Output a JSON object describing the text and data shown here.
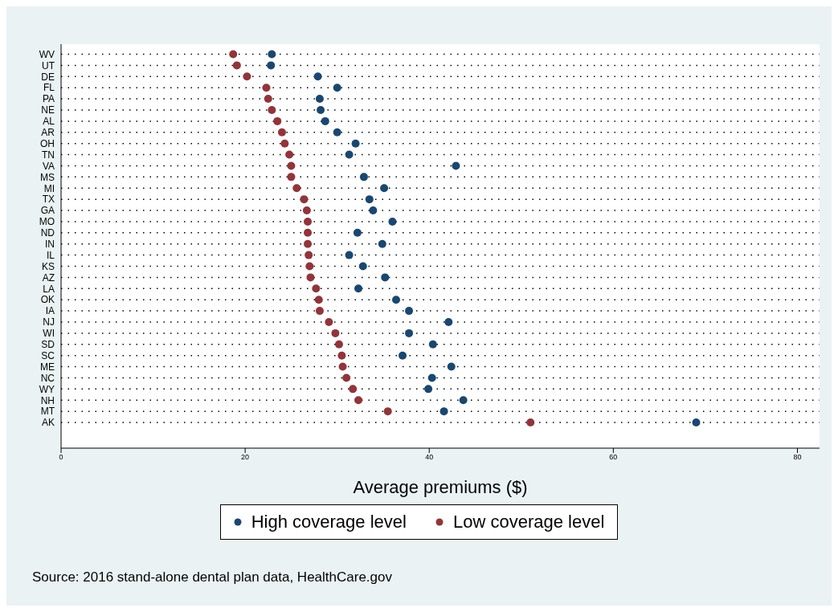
{
  "chart_data": {
    "type": "scatter",
    "orientation": "horizontal",
    "xlabel": "Average premiums ($)",
    "categories": [
      "WV",
      "UT",
      "DE",
      "FL",
      "PA",
      "NE",
      "AL",
      "AR",
      "OH",
      "TN",
      "VA",
      "MS",
      "MI",
      "TX",
      "GA",
      "MO",
      "ND",
      "IN",
      "IL",
      "KS",
      "AZ",
      "LA",
      "OK",
      "IA",
      "NJ",
      "WI",
      "SD",
      "SC",
      "ME",
      "NC",
      "WY",
      "NH",
      "MT",
      "AK"
    ],
    "series": [
      {
        "name": "High coverage level",
        "color": "#1a476f",
        "values": [
          22.9,
          22.8,
          27.9,
          30.0,
          28.1,
          28.2,
          28.7,
          30.0,
          32.0,
          31.3,
          42.9,
          32.9,
          35.1,
          33.5,
          33.9,
          36.0,
          32.2,
          34.9,
          31.3,
          32.8,
          35.2,
          32.3,
          36.4,
          37.8,
          42.1,
          37.8,
          40.4,
          37.1,
          42.4,
          40.3,
          39.9,
          43.7,
          41.6,
          69.0
        ]
      },
      {
        "name": "Low coverage level",
        "color": "#90353b",
        "values": [
          18.7,
          19.1,
          20.2,
          22.3,
          22.5,
          22.9,
          23.5,
          24.0,
          24.3,
          24.8,
          25.0,
          25.0,
          25.6,
          26.4,
          26.7,
          26.8,
          26.8,
          26.8,
          26.9,
          27.0,
          27.1,
          27.7,
          28.0,
          28.1,
          29.1,
          29.8,
          30.2,
          30.5,
          30.6,
          31.0,
          31.7,
          32.3,
          35.5,
          51.0
        ]
      }
    ],
    "xlim": [
      0,
      82.4
    ],
    "xticks": [
      0,
      20,
      40,
      60,
      80
    ],
    "grid": "y",
    "marker": "circle",
    "legend": "bottom",
    "annotations": [
      "Source: 2016 stand-alone dental plan data, HealthCare.gov"
    ]
  }
}
